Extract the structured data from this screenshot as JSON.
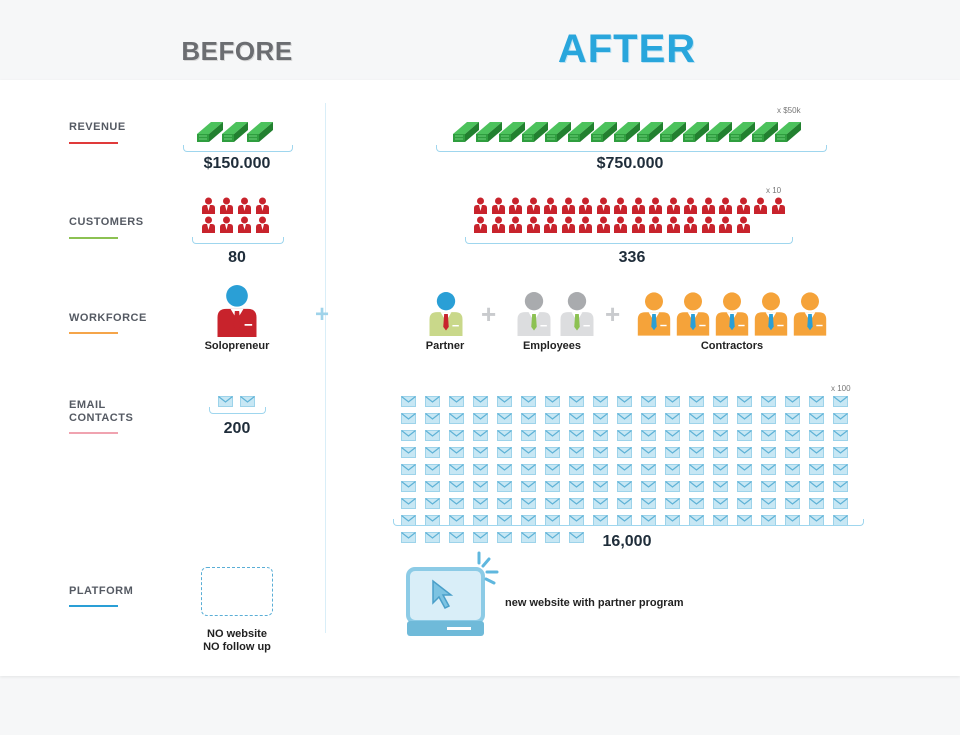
{
  "header": {
    "before": "BEFORE",
    "after": "AFTER"
  },
  "rows": {
    "revenue": {
      "label": "REVENUE",
      "color": "#e03a3a",
      "before": "$150.000",
      "after": "$750.000",
      "unit": "x $50k",
      "before_count": 3,
      "after_count": 15
    },
    "customers": {
      "label": "CUSTOMERS",
      "color": "#8cc152",
      "before": "80",
      "after": "336",
      "unit": "x 10",
      "before_count": 8,
      "after_count": 34
    },
    "workforce": {
      "label": "WORKFORCE",
      "color": "#f5a54a",
      "before_caption": "Solopreneur",
      "partner": "Partner",
      "employees": "Employees",
      "contractors": "Contractors",
      "employees_count": 2,
      "contractors_count": 5
    },
    "email": {
      "label_line1": "EMAIL",
      "label_line2": "CONTACTS",
      "color": "#f0a3b0",
      "before": "200",
      "after": "16,000",
      "unit": "x 100",
      "before_count": 2,
      "after_count": 160
    },
    "platform": {
      "label": "PLATFORM",
      "color": "#2a9fd6",
      "before_line1": "NO website",
      "before_line2": "NO follow up",
      "after": "new website with partner program"
    }
  },
  "colors": {
    "money": "#2f9e3f",
    "customer": "#c8232c",
    "partner_head": "#2a9fd6",
    "employee_head": "#a9abae",
    "contractor": "#f5a33a",
    "envelope": "#9dd3ea",
    "accent": "#29a6dc"
  }
}
